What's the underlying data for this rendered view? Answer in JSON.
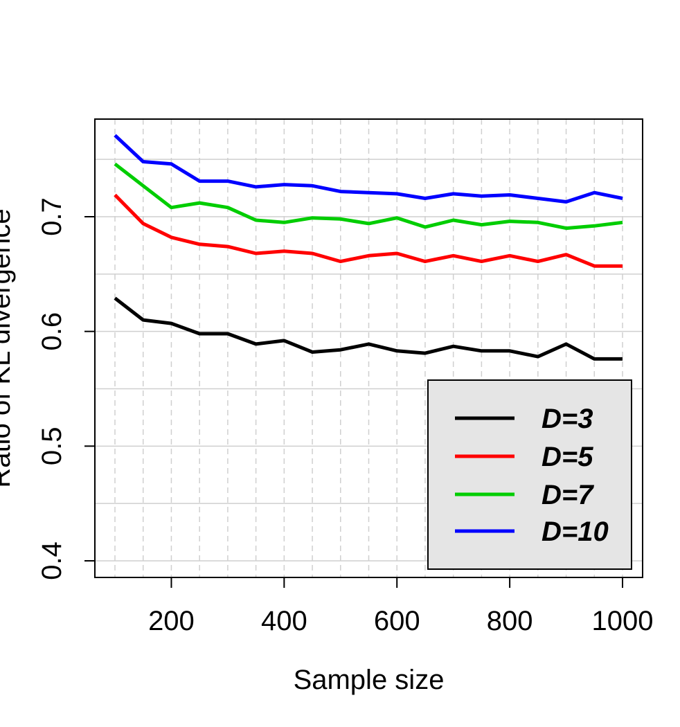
{
  "chart_data": {
    "type": "line",
    "title": "",
    "xlabel": "Sample size",
    "ylabel": "Ratio of KL divergence",
    "xlim": [
      100,
      1000
    ],
    "ylim": [
      0.4,
      0.77
    ],
    "x_ticks": [
      200,
      400,
      600,
      800,
      1000
    ],
    "y_ticks": [
      0.4,
      0.5,
      0.6,
      0.7
    ],
    "x_tick_labels": [
      "200",
      "400",
      "600",
      "800",
      "1000"
    ],
    "y_tick_labels": [
      "0.4",
      "0.5",
      "0.6",
      "0.7"
    ],
    "grid": true,
    "legend_position": "bottom-right",
    "x": [
      100,
      150,
      200,
      250,
      300,
      350,
      400,
      450,
      500,
      550,
      600,
      650,
      700,
      750,
      800,
      850,
      900,
      950,
      1000
    ],
    "series": [
      {
        "name": "D=3",
        "color": "#000000",
        "values": [
          0.629,
          0.61,
          0.607,
          0.598,
          0.598,
          0.589,
          0.592,
          0.582,
          0.584,
          0.589,
          0.583,
          0.581,
          0.587,
          0.583,
          0.583,
          0.578,
          0.589,
          0.576,
          0.576
        ]
      },
      {
        "name": "D=5",
        "color": "#ff0000",
        "values": [
          0.719,
          0.694,
          0.682,
          0.676,
          0.674,
          0.668,
          0.67,
          0.668,
          0.661,
          0.666,
          0.668,
          0.661,
          0.666,
          0.661,
          0.666,
          0.661,
          0.667,
          0.657,
          0.657
        ]
      },
      {
        "name": "D=7",
        "color": "#00cd00",
        "values": [
          0.746,
          0.727,
          0.708,
          0.712,
          0.708,
          0.697,
          0.695,
          0.699,
          0.698,
          0.694,
          0.699,
          0.691,
          0.697,
          0.693,
          0.696,
          0.695,
          0.69,
          0.692,
          0.695
        ]
      },
      {
        "name": "D=10",
        "color": "#0000ff",
        "values": [
          0.771,
          0.748,
          0.746,
          0.731,
          0.731,
          0.726,
          0.728,
          0.727,
          0.722,
          0.721,
          0.72,
          0.716,
          0.72,
          0.718,
          0.719,
          0.716,
          0.713,
          0.721,
          0.716
        ]
      }
    ]
  }
}
